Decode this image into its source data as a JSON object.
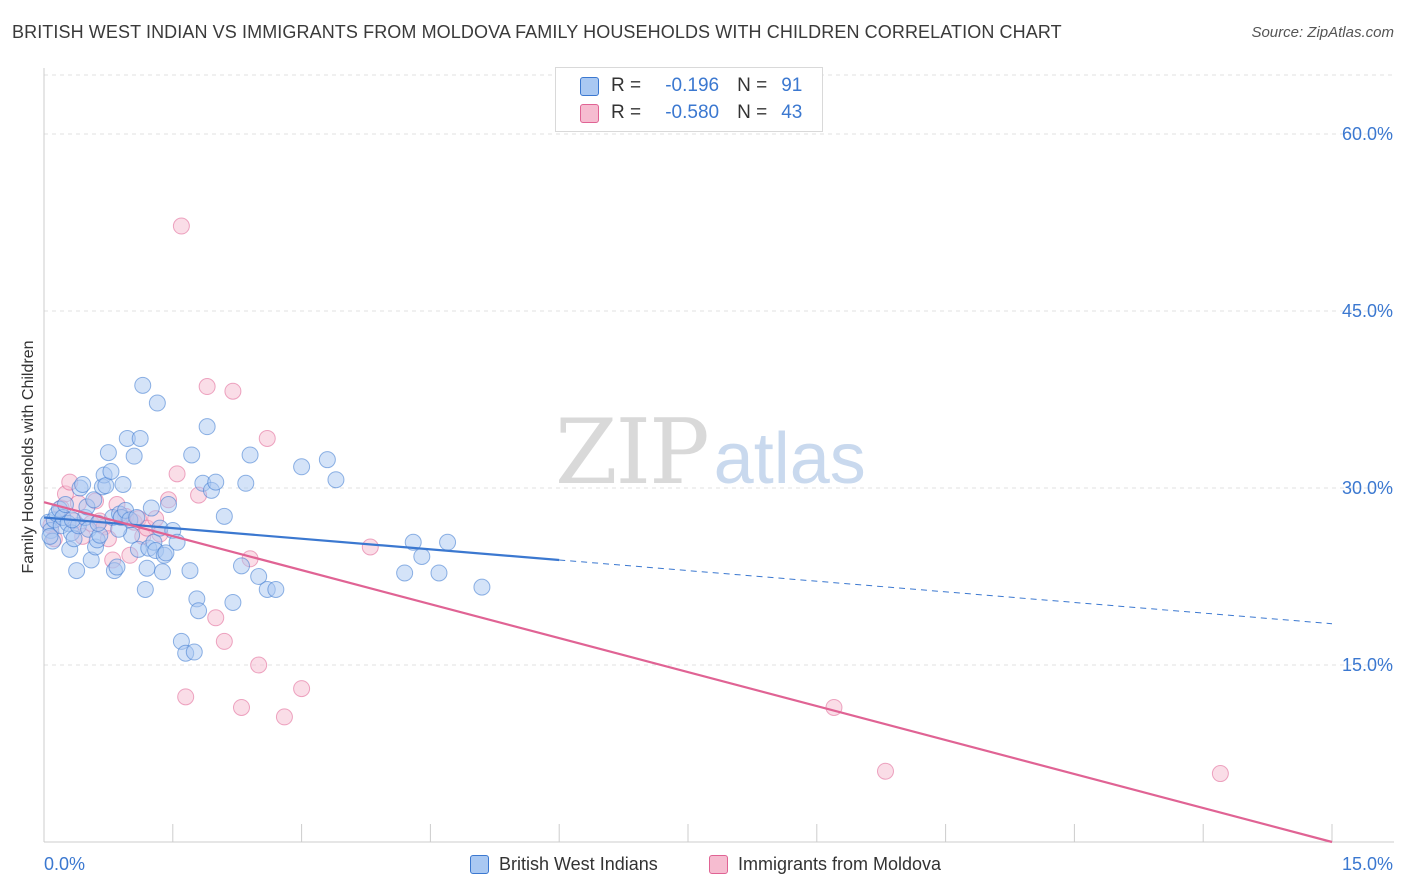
{
  "title": "BRITISH WEST INDIAN VS IMMIGRANTS FROM MOLDOVA FAMILY HOUSEHOLDS WITH CHILDREN CORRELATION CHART",
  "source": "Source: ZipAtlas.com",
  "watermark": {
    "zip": "ZIP",
    "atlas": "atlas"
  },
  "colors": {
    "blue": "#3b78d0",
    "pink": "#e06394",
    "blue_fill": "#a9c8f2",
    "pink_fill": "#f6bcd0",
    "grid": "#e1e1e1"
  },
  "legend": {
    "r_label": "R =",
    "n_label": "N =",
    "rows": [
      {
        "r": "-0.196",
        "n": "91"
      },
      {
        "r": "-0.580",
        "n": "43"
      }
    ]
  },
  "bottom_legend": [
    "British West Indians",
    "Immigrants from Moldova"
  ],
  "chart_data": {
    "type": "scatter",
    "title": "BRITISH WEST INDIAN VS IMMIGRANTS FROM MOLDOVA FAMILY HOUSEHOLDS WITH CHILDREN CORRELATION CHART",
    "xlabel": "",
    "ylabel": "Family Households with Children",
    "xlim": [
      0,
      15
    ],
    "ylim": [
      0,
      65
    ],
    "x_tick_labels": [
      "0.0%",
      "15.0%"
    ],
    "y_ticks": [
      15,
      30,
      45,
      60
    ],
    "y_tick_labels": [
      "15.0%",
      "30.0%",
      "45.0%",
      "60.0%"
    ],
    "grid": true,
    "legend_position": "top-center",
    "series": [
      {
        "name": "British West Indians",
        "color": "#3b78d0",
        "r": -0.196,
        "n": 91,
        "trend": {
          "x0": 0,
          "y0": 27.5,
          "x1": 15,
          "y1": 18.5,
          "solid_until": 6
        },
        "points": [
          [
            0.05,
            27.1
          ],
          [
            0.08,
            26.4
          ],
          [
            0.1,
            25.5
          ],
          [
            0.12,
            27.3
          ],
          [
            0.15,
            27.8
          ],
          [
            0.18,
            28.2
          ],
          [
            0.2,
            26.8
          ],
          [
            0.22,
            27.5
          ],
          [
            0.25,
            28.6
          ],
          [
            0.28,
            27.0
          ],
          [
            0.3,
            24.8
          ],
          [
            0.32,
            26.2
          ],
          [
            0.35,
            25.7
          ],
          [
            0.38,
            23.0
          ],
          [
            0.4,
            26.8
          ],
          [
            0.42,
            30.0
          ],
          [
            0.45,
            30.3
          ],
          [
            0.48,
            27.5
          ],
          [
            0.5,
            28.4
          ],
          [
            0.52,
            26.5
          ],
          [
            0.55,
            23.9
          ],
          [
            0.58,
            29.0
          ],
          [
            0.6,
            25.0
          ],
          [
            0.62,
            25.6
          ],
          [
            0.65,
            26.0
          ],
          [
            0.68,
            30.1
          ],
          [
            0.7,
            31.1
          ],
          [
            0.72,
            30.2
          ],
          [
            0.75,
            33.0
          ],
          [
            0.78,
            31.4
          ],
          [
            0.8,
            27.5
          ],
          [
            0.82,
            23.0
          ],
          [
            0.85,
            23.3
          ],
          [
            0.88,
            27.8
          ],
          [
            0.9,
            27.5
          ],
          [
            0.92,
            30.3
          ],
          [
            0.95,
            28.1
          ],
          [
            0.97,
            34.2
          ],
          [
            1.0,
            27.3
          ],
          [
            1.02,
            26.0
          ],
          [
            1.05,
            32.7
          ],
          [
            1.08,
            27.5
          ],
          [
            1.1,
            24.8
          ],
          [
            1.12,
            34.2
          ],
          [
            1.15,
            38.7
          ],
          [
            1.18,
            21.4
          ],
          [
            1.2,
            23.2
          ],
          [
            1.22,
            24.9
          ],
          [
            1.25,
            28.3
          ],
          [
            1.28,
            25.4
          ],
          [
            1.3,
            24.7
          ],
          [
            1.32,
            37.2
          ],
          [
            1.35,
            26.6
          ],
          [
            1.38,
            22.9
          ],
          [
            1.4,
            24.3
          ],
          [
            1.42,
            24.5
          ],
          [
            1.45,
            28.6
          ],
          [
            1.5,
            26.4
          ],
          [
            1.55,
            25.4
          ],
          [
            1.6,
            17.0
          ],
          [
            1.65,
            16.0
          ],
          [
            1.7,
            23.0
          ],
          [
            1.72,
            32.8
          ],
          [
            1.75,
            16.1
          ],
          [
            1.78,
            20.6
          ],
          [
            1.8,
            19.6
          ],
          [
            1.85,
            30.4
          ],
          [
            1.9,
            35.2
          ],
          [
            1.95,
            29.8
          ],
          [
            2.0,
            30.5
          ],
          [
            2.1,
            27.6
          ],
          [
            2.2,
            20.3
          ],
          [
            2.3,
            23.4
          ],
          [
            2.35,
            30.4
          ],
          [
            2.4,
            32.8
          ],
          [
            2.5,
            22.5
          ],
          [
            2.6,
            21.4
          ],
          [
            2.7,
            21.4
          ],
          [
            3.0,
            31.8
          ],
          [
            3.3,
            32.4
          ],
          [
            3.4,
            30.7
          ],
          [
            4.2,
            22.8
          ],
          [
            4.3,
            25.4
          ],
          [
            4.4,
            24.2
          ],
          [
            4.6,
            22.8
          ],
          [
            4.7,
            25.4
          ],
          [
            5.1,
            21.6
          ],
          [
            0.07,
            25.9
          ],
          [
            0.33,
            27.3
          ],
          [
            0.63,
            27.0
          ],
          [
            0.87,
            26.5
          ]
        ]
      },
      {
        "name": "Immigrants from Moldova",
        "color": "#e06394",
        "r": -0.58,
        "n": 43,
        "trend": {
          "x0": 0,
          "y0": 28.8,
          "x1": 15,
          "y1": 0.0,
          "solid_until": 15
        },
        "points": [
          [
            0.08,
            26.8
          ],
          [
            0.12,
            25.7
          ],
          [
            0.2,
            28.3
          ],
          [
            0.25,
            29.5
          ],
          [
            0.3,
            30.5
          ],
          [
            0.35,
            27.2
          ],
          [
            0.4,
            28.7
          ],
          [
            0.45,
            25.9
          ],
          [
            0.55,
            27.0
          ],
          [
            0.6,
            28.9
          ],
          [
            0.65,
            27.2
          ],
          [
            0.7,
            26.7
          ],
          [
            0.75,
            25.7
          ],
          [
            0.8,
            23.9
          ],
          [
            0.85,
            28.6
          ],
          [
            0.9,
            27.5
          ],
          [
            0.95,
            27.6
          ],
          [
            1.0,
            24.3
          ],
          [
            1.05,
            27.1
          ],
          [
            1.1,
            27.4
          ],
          [
            1.15,
            25.9
          ],
          [
            1.2,
            26.6
          ],
          [
            1.3,
            27.4
          ],
          [
            1.35,
            26.1
          ],
          [
            1.45,
            29.0
          ],
          [
            1.55,
            31.2
          ],
          [
            1.6,
            52.2
          ],
          [
            1.65,
            12.3
          ],
          [
            1.8,
            29.4
          ],
          [
            1.9,
            38.6
          ],
          [
            2.0,
            19.0
          ],
          [
            2.1,
            17.0
          ],
          [
            2.2,
            38.2
          ],
          [
            2.3,
            11.4
          ],
          [
            2.4,
            24.0
          ],
          [
            2.5,
            15.0
          ],
          [
            2.6,
            34.2
          ],
          [
            2.8,
            10.6
          ],
          [
            3.0,
            13.0
          ],
          [
            3.8,
            25.0
          ],
          [
            9.2,
            11.4
          ],
          [
            9.8,
            6.0
          ],
          [
            13.7,
            5.8
          ]
        ]
      }
    ]
  }
}
